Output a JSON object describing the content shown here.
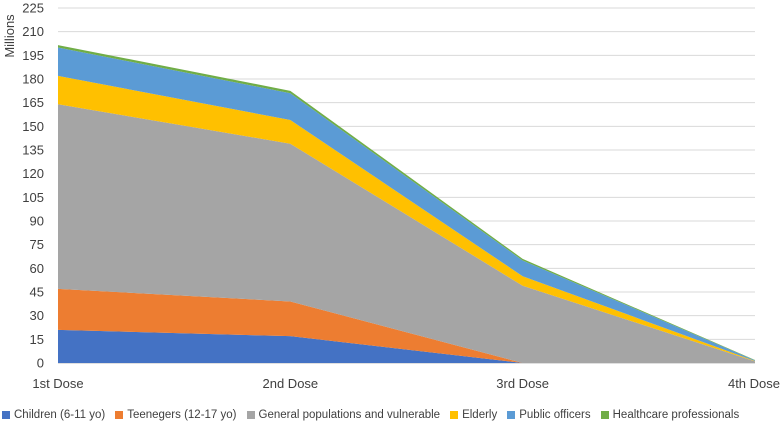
{
  "chart_data": {
    "type": "area",
    "stacked": true,
    "title": "",
    "xlabel": "",
    "ylabel": "Millions",
    "ylim": [
      0,
      225
    ],
    "yticks": [
      0,
      15,
      30,
      45,
      60,
      75,
      90,
      105,
      120,
      135,
      150,
      165,
      180,
      195,
      210,
      225
    ],
    "categories": [
      "1st Dose",
      "2nd Dose",
      "3rd Dose",
      "4th Dose"
    ],
    "grid": true,
    "legend_position": "bottom",
    "series": [
      {
        "name": "Children (6-11 yo)",
        "color": "#4472C4",
        "values": [
          21,
          17,
          0,
          0
        ]
      },
      {
        "name": "Teenegers (12-17 yo)",
        "color": "#ED7D31",
        "values": [
          26,
          22,
          0,
          0
        ]
      },
      {
        "name": "General populations and vulnerable",
        "color": "#A5A5A5",
        "values": [
          117,
          100,
          49,
          1
        ]
      },
      {
        "name": "Elderly",
        "color": "#FFC000",
        "values": [
          18,
          15,
          6,
          0.3
        ]
      },
      {
        "name": "Public officers",
        "color": "#5B9BD5",
        "values": [
          18,
          17,
          10,
          0.4
        ]
      },
      {
        "name": "Healthcare professionals",
        "color": "#70AD47",
        "values": [
          1.5,
          1.5,
          1,
          0.2
        ]
      }
    ]
  }
}
